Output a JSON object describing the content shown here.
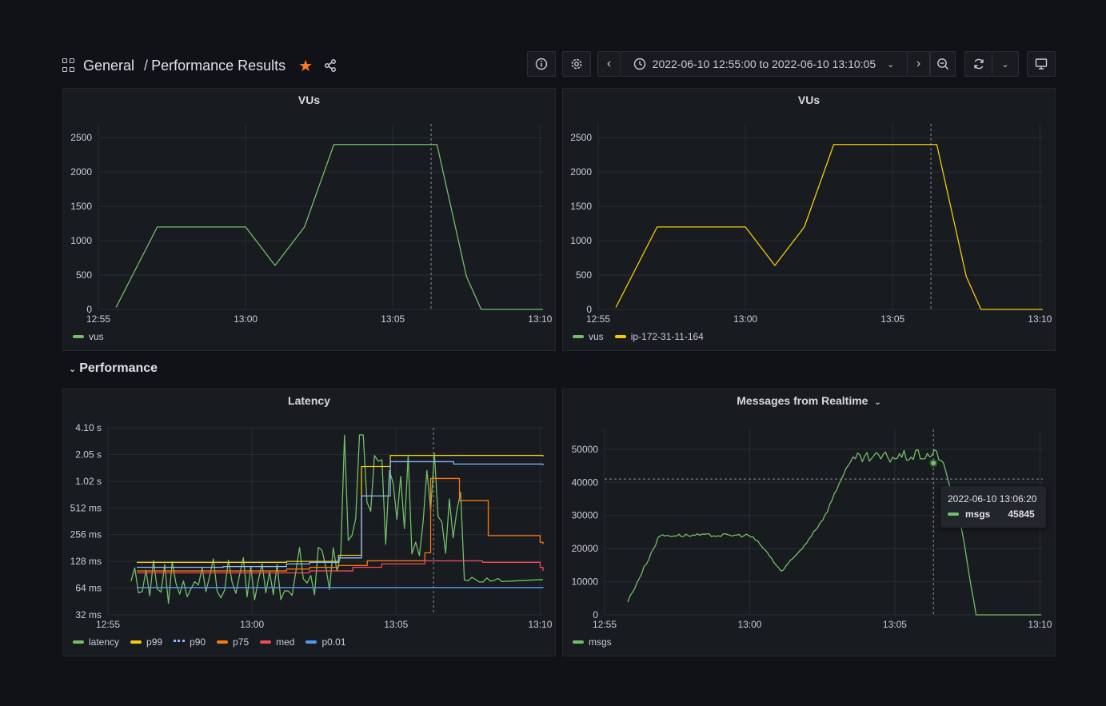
{
  "header": {
    "folder": "General",
    "separator": "/",
    "dashboard_title": "Performance Results",
    "time_range": "2022-06-10 12:55:00 to 2022-06-10 13:10:05"
  },
  "row": {
    "title": "Performance"
  },
  "colors": {
    "green": "#73bf69",
    "yellow": "#f2cc0c",
    "lightblue": "#8ab8ff",
    "orange": "#ff780a",
    "red": "#f2495c",
    "blue": "#5794f2",
    "star": "#ff7b21"
  },
  "chart_data": [
    {
      "id": "vus_left",
      "type": "line",
      "title": "VUs",
      "x_ticks": [
        "12:55",
        "13:00",
        "13:05",
        "13:10"
      ],
      "y_ticks": [
        "0",
        "500",
        "1000",
        "1500",
        "2000",
        "2500"
      ],
      "ylim": [
        0,
        2700
      ],
      "x_range_min": [
        0,
        15.1
      ],
      "series": [
        {
          "name": "vus",
          "color_key": "green",
          "points": [
            [
              0.6,
              30
            ],
            [
              2,
              1200
            ],
            [
              5,
              1200
            ],
            [
              6,
              640
            ],
            [
              7,
              1200
            ],
            [
              8,
              2400
            ],
            [
              11.5,
              2400
            ],
            [
              12.5,
              480
            ],
            [
              13,
              0
            ],
            [
              15.1,
              0
            ]
          ]
        }
      ]
    },
    {
      "id": "vus_right",
      "type": "line",
      "title": "VUs",
      "x_ticks": [
        "12:55",
        "13:00",
        "13:05",
        "13:10"
      ],
      "y_ticks": [
        "0",
        "500",
        "1000",
        "1500",
        "2000",
        "2500"
      ],
      "ylim": [
        0,
        2700
      ],
      "x_range_min": [
        0,
        15.1
      ],
      "legend_only": [
        "vus"
      ],
      "series": [
        {
          "name": "vus",
          "color_key": "green",
          "points": []
        },
        {
          "name": "ip-172-31-11-164",
          "color_key": "yellow",
          "points": [
            [
              0.6,
              30
            ],
            [
              2,
              1200
            ],
            [
              5,
              1200
            ],
            [
              6,
              640
            ],
            [
              7,
              1200
            ],
            [
              8,
              2400
            ],
            [
              11.5,
              2400
            ],
            [
              12.5,
              480
            ],
            [
              13,
              0
            ],
            [
              15.1,
              0
            ]
          ]
        }
      ]
    },
    {
      "id": "latency",
      "type": "line",
      "title": "Latency",
      "x_ticks": [
        "12:55",
        "13:00",
        "13:05",
        "13:10"
      ],
      "y_ticks": [
        "32 ms",
        "64 ms",
        "128 ms",
        "256 ms",
        "512 ms",
        "1.02 s",
        "2.05 s",
        "4.10 s"
      ],
      "y_scale": "log2",
      "ylim_ms": [
        32,
        4100
      ],
      "x_range_min": [
        0,
        15.1
      ],
      "series": [
        {
          "name": "latency",
          "color_key": "green",
          "noisy": true
        },
        {
          "name": "p99",
          "color_key": "yellow",
          "points": [
            [
              1,
              125
            ],
            [
              4,
              125
            ],
            [
              6.2,
              128
            ],
            [
              7,
              128
            ],
            [
              8,
              150
            ],
            [
              8.8,
              1500
            ],
            [
              9.6,
              1500
            ],
            [
              9.8,
              2000
            ],
            [
              15.1,
              1950
            ]
          ]
        },
        {
          "name": "p90",
          "color_key": "lightblue",
          "points": [
            [
              1,
              110
            ],
            [
              4,
              112
            ],
            [
              6.2,
              120
            ],
            [
              7,
              125
            ],
            [
              8,
              140
            ],
            [
              8.8,
              700
            ],
            [
              9.6,
              700
            ],
            [
              9.8,
              1700
            ],
            [
              12,
              1600
            ],
            [
              15.1,
              1550
            ]
          ]
        },
        {
          "name": "p75",
          "color_key": "orange",
          "points": [
            [
              1,
              100
            ],
            [
              6.2,
              105
            ],
            [
              7,
              110
            ],
            [
              8,
              115
            ],
            [
              9,
              130
            ],
            [
              11,
              160
            ],
            [
              11.2,
              1100
            ],
            [
              12,
              1100
            ],
            [
              12.2,
              620
            ],
            [
              13,
              620
            ],
            [
              13.2,
              250
            ],
            [
              15,
              210
            ],
            [
              15.1,
              200
            ]
          ]
        },
        {
          "name": "med",
          "color_key": "red",
          "points": [
            [
              1,
              95
            ],
            [
              6.2,
              95
            ],
            [
              7,
              100
            ],
            [
              8.5,
              110
            ],
            [
              9.5,
              120
            ],
            [
              11,
              130
            ],
            [
              13,
              125
            ],
            [
              15,
              110
            ],
            [
              15.1,
              100
            ]
          ]
        },
        {
          "name": "p0.01",
          "color_key": "blue",
          "points": [
            [
              1,
              65
            ],
            [
              15.1,
              66
            ]
          ]
        }
      ]
    },
    {
      "id": "messages",
      "type": "line",
      "title": "Messages from Realtime",
      "x_ticks": [
        "12:55",
        "13:00",
        "13:05",
        "13:10"
      ],
      "y_ticks": [
        "0",
        "10000",
        "20000",
        "30000",
        "40000",
        "50000"
      ],
      "ylim": [
        0,
        56000
      ],
      "x_range_min": [
        0,
        15.1
      ],
      "series": [
        {
          "name": "msgs",
          "color_key": "green",
          "noisy": true,
          "points": [
            [
              0.8,
              4000
            ],
            [
              1.9,
              24000
            ],
            [
              5,
              24000
            ],
            [
              5.4,
              21000
            ],
            [
              6.1,
              13000
            ],
            [
              6.8,
              20000
            ],
            [
              7.6,
              30000
            ],
            [
              8.3,
              44000
            ],
            [
              8.6,
              47000
            ],
            [
              11.5,
              48500
            ],
            [
              11.7,
              45000
            ],
            [
              12.3,
              26000
            ],
            [
              12.8,
              0
            ],
            [
              15.1,
              0
            ]
          ]
        }
      ],
      "tooltip": {
        "time": "2022-06-10 13:06:20",
        "series": "msgs",
        "value": "45845"
      },
      "crosshair_x_min": 11.33,
      "crosshair_y": 41000
    }
  ]
}
